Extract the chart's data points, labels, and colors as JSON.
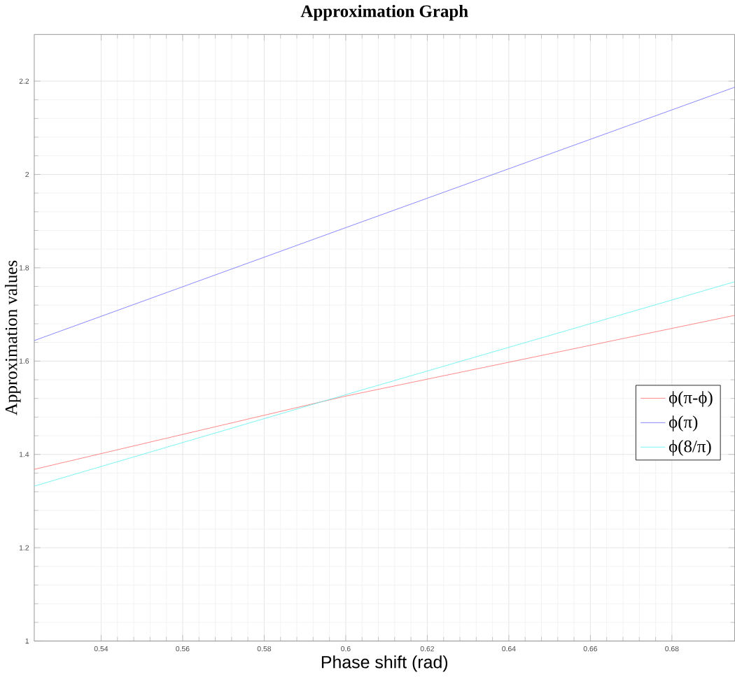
{
  "chart_data": {
    "type": "line",
    "title": "Approximation Graph",
    "xlabel": "Phase shift (rad)",
    "ylabel": "Approximation  values",
    "x": [
      0.5236,
      0.6,
      0.6954
    ],
    "series": [
      {
        "name": "ϕ(π-ϕ)",
        "color": "#ff7070",
        "values": [
          1.368,
          1.525,
          1.698
        ]
      },
      {
        "name": "ϕ(π)",
        "color": "#7070ff",
        "values": [
          1.644,
          1.886,
          2.187
        ]
      },
      {
        "name": "ϕ(8/π)",
        "color": "#60f0f0",
        "values": [
          1.332,
          1.528,
          1.77
        ]
      }
    ],
    "xlim": [
      0.5236,
      0.6954
    ],
    "ylim": [
      1,
      2.3
    ],
    "xticks": [
      0.54,
      0.56,
      0.58,
      0.6,
      0.62,
      0.64,
      0.66,
      0.68
    ],
    "yticks": [
      1,
      1.2,
      1.4,
      1.6,
      1.8,
      2,
      2.2
    ],
    "grid": true,
    "legend": "right",
    "marker": "none",
    "line_style": "solid"
  }
}
